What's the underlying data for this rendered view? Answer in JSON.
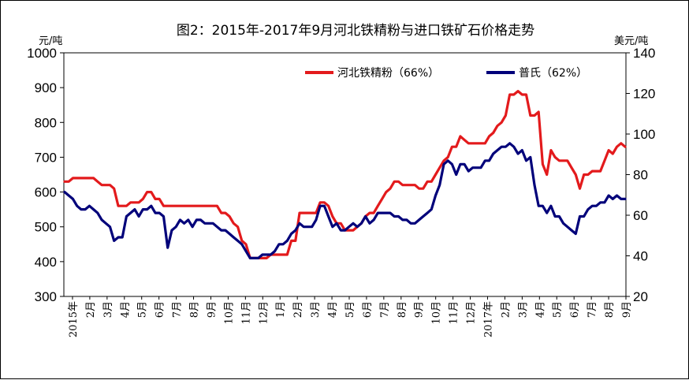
{
  "chart_data": {
    "type": "line",
    "title": "图2：2015年-2017年9月河北铁精粉与进口铁矿石价格走势",
    "ylabel_left": "元/吨",
    "ylabel_right": "美元/吨",
    "ylim_left": [
      300,
      1000
    ],
    "ylim_right": [
      20,
      140
    ],
    "yticks_left": [
      "300",
      "400",
      "500",
      "600",
      "700",
      "800",
      "900",
      "1000"
    ],
    "yticks_right": [
      "20",
      "40",
      "60",
      "80",
      "100",
      "120",
      "140"
    ],
    "x_labels": [
      "2015年",
      "2月",
      "3月",
      "4月",
      "5月",
      "6月",
      "7月",
      "8月",
      "9月",
      "10月",
      "11月",
      "12月",
      "1月",
      "2月",
      "3月",
      "4月",
      "5月",
      "6月",
      "7月",
      "8月",
      "9月",
      "10月",
      "11月",
      "12月",
      "2017年",
      "2月",
      "3月",
      "4月",
      "5月",
      "6月",
      "7月",
      "8月",
      "9月"
    ],
    "legend_position": "top-right",
    "colors": {
      "hebei": "#e31a1c",
      "import": "#00007a"
    },
    "series": [
      {
        "name": "河北铁精粉（66%）",
        "axis": "left",
        "values": [
          630,
          630,
          640,
          640,
          640,
          640,
          640,
          640,
          630,
          620,
          620,
          620,
          610,
          560,
          560,
          560,
          570,
          570,
          570,
          580,
          600,
          600,
          580,
          580,
          560,
          560,
          560,
          560,
          560,
          560,
          560,
          560,
          560,
          560,
          560,
          560,
          560,
          560,
          540,
          540,
          530,
          510,
          500,
          460,
          450,
          410,
          410,
          410,
          410,
          410,
          420,
          420,
          420,
          420,
          420,
          460,
          460,
          540,
          540,
          540,
          540,
          540,
          570,
          570,
          560,
          530,
          510,
          510,
          490,
          490,
          490,
          500,
          510,
          530,
          540,
          540,
          560,
          580,
          600,
          610,
          630,
          630,
          620,
          620,
          620,
          620,
          610,
          610,
          630,
          630,
          650,
          670,
          690,
          700,
          730,
          730,
          760,
          750,
          740,
          740,
          740,
          740,
          740,
          760,
          770,
          790,
          800,
          820,
          880,
          880,
          890,
          880,
          880,
          820,
          820,
          830,
          680,
          650,
          720,
          700,
          690,
          690,
          690,
          670,
          650,
          610,
          650,
          650,
          660,
          660,
          660,
          690,
          720,
          710,
          730,
          740,
          730
        ]
      },
      {
        "name": "普氏（62%）",
        "axis": "left",
        "values": [
          600,
          590,
          580,
          560,
          550,
          550,
          560,
          550,
          540,
          520,
          510,
          500,
          460,
          470,
          470,
          530,
          540,
          550,
          530,
          550,
          550,
          560,
          540,
          540,
          530,
          440,
          490,
          500,
          520,
          510,
          520,
          500,
          520,
          520,
          510,
          510,
          510,
          500,
          490,
          490,
          480,
          470,
          460,
          450,
          430,
          410,
          410,
          410,
          420,
          420,
          420,
          430,
          450,
          450,
          460,
          480,
          490,
          510,
          500,
          500,
          500,
          520,
          560,
          560,
          530,
          500,
          510,
          490,
          490,
          500,
          510,
          500,
          510,
          530,
          510,
          520,
          540,
          540,
          540,
          540,
          530,
          530,
          520,
          520,
          510,
          510,
          520,
          530,
          540,
          550,
          590,
          620,
          680,
          690,
          680,
          650,
          680,
          680,
          660,
          670,
          670,
          670,
          690,
          690,
          710,
          720,
          730,
          730,
          740,
          730,
          710,
          720,
          690,
          700,
          620,
          560,
          560,
          540,
          560,
          530,
          530,
          510,
          500,
          490,
          480,
          530,
          530,
          550,
          560,
          560,
          570,
          570,
          590,
          580,
          590,
          580,
          580
        ]
      }
    ]
  }
}
